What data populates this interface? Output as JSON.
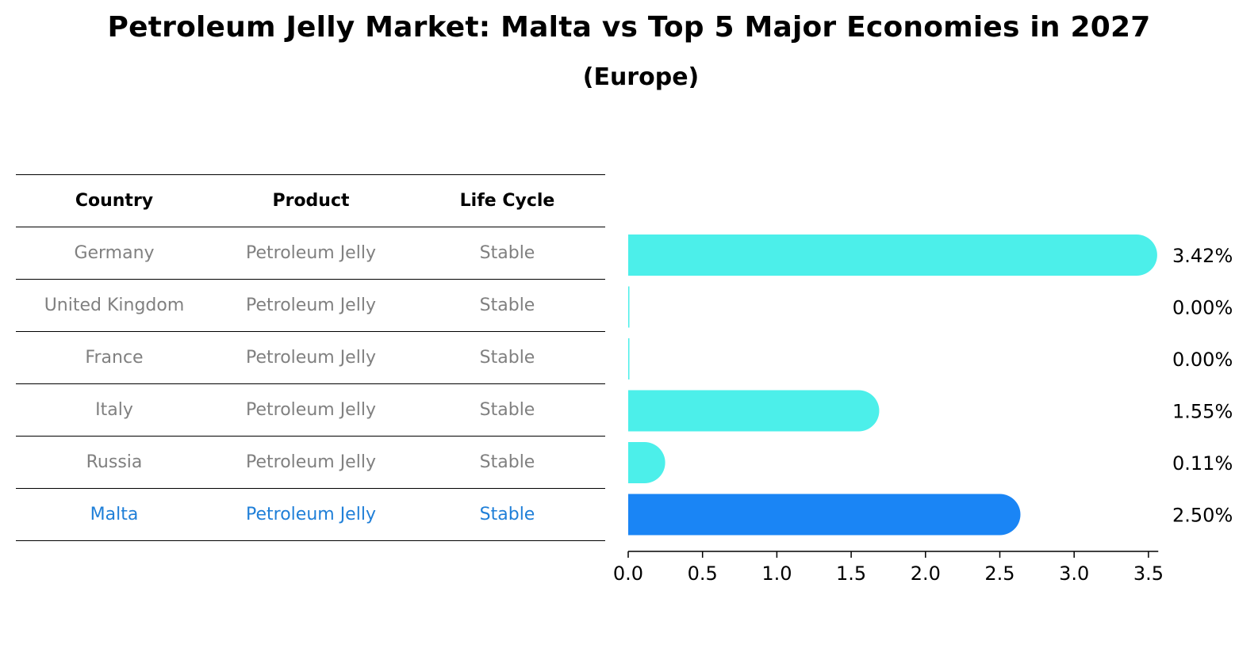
{
  "title": "Petroleum Jelly Market: Malta vs Top 5 Major Economies in 2027",
  "subtitle": "(Europe)",
  "table": {
    "headers": [
      "Country",
      "Product",
      "Life Cycle"
    ],
    "rows": [
      [
        "Germany",
        "Petroleum Jelly",
        "Stable"
      ],
      [
        "United Kingdom",
        "Petroleum Jelly",
        "Stable"
      ],
      [
        "France",
        "Petroleum Jelly",
        "Stable"
      ],
      [
        "Italy",
        "Petroleum Jelly",
        "Stable"
      ],
      [
        "Russia",
        "Petroleum Jelly",
        "Stable"
      ],
      [
        "Malta",
        "Petroleum Jelly",
        "Stable"
      ]
    ],
    "highlight_row": 5
  },
  "chart_data": {
    "type": "bar",
    "orientation": "horizontal",
    "categories": [
      "Germany",
      "United Kingdom",
      "France",
      "Italy",
      "Russia",
      "Malta"
    ],
    "values": [
      3.42,
      0.0,
      0.0,
      1.55,
      0.11,
      2.5
    ],
    "data_labels": [
      "3.42%",
      "0.00%",
      "0.00%",
      "1.55%",
      "0.11%",
      "2.50%"
    ],
    "xlim": [
      0,
      3.5
    ],
    "xticks": [
      "0.0",
      "0.5",
      "1.0",
      "1.5",
      "2.0",
      "2.5",
      "3.0",
      "3.5"
    ],
    "highlight_index": 5,
    "colors": {
      "bar": "#4cefea",
      "highlight": "#1a85f5"
    },
    "grid": false
  }
}
